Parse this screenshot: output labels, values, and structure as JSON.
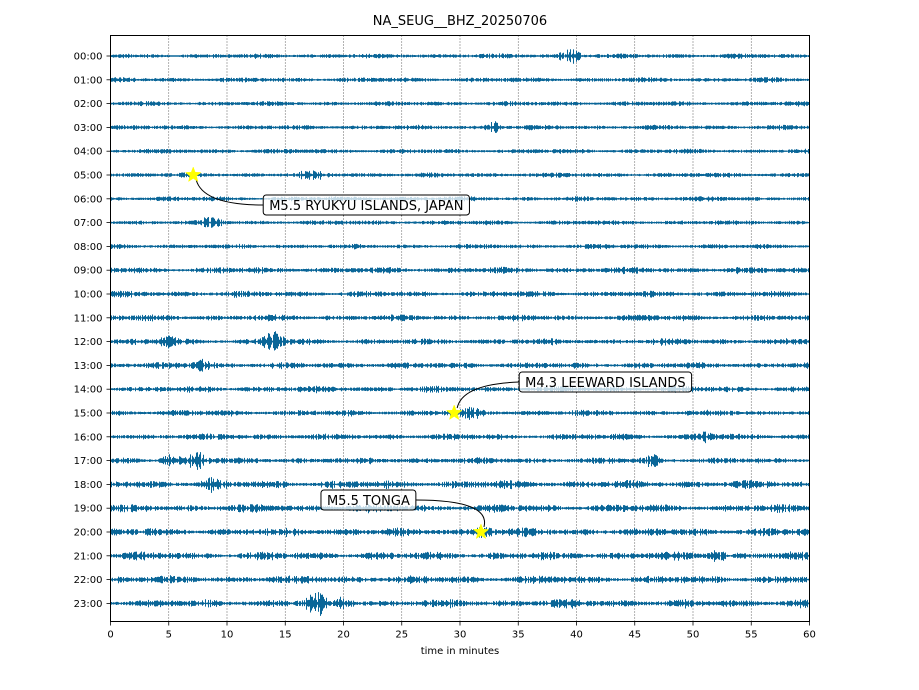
{
  "chart_data": {
    "type": "line",
    "title": "NA_SEUG__BHZ_20250706",
    "xlabel": "time in minutes",
    "ylabel": "",
    "xlim": [
      0,
      60
    ],
    "x_ticks": [
      0,
      5,
      10,
      15,
      20,
      25,
      30,
      35,
      40,
      45,
      50,
      55,
      60
    ],
    "y_tick_labels": [
      "00:00",
      "01:00",
      "02:00",
      "03:00",
      "04:00",
      "05:00",
      "06:00",
      "07:00",
      "08:00",
      "09:00",
      "10:00",
      "11:00",
      "12:00",
      "13:00",
      "14:00",
      "15:00",
      "16:00",
      "17:00",
      "18:00",
      "19:00",
      "20:00",
      "21:00",
      "22:00",
      "23:00"
    ],
    "grid": "vertical dotted",
    "trace_color": "#0a6698",
    "marker_color": "#ffff00",
    "events": [
      {
        "label": "M5.5 RYUKYU ISLANDS, JAPAN",
        "hour": 5,
        "minute": 7.1
      },
      {
        "label": "M4.3 LEEWARD ISLANDS",
        "hour": 15,
        "minute": 29.5
      },
      {
        "label": "M5.5 TONGA",
        "hour": 20,
        "minute": 31.8
      }
    ]
  }
}
